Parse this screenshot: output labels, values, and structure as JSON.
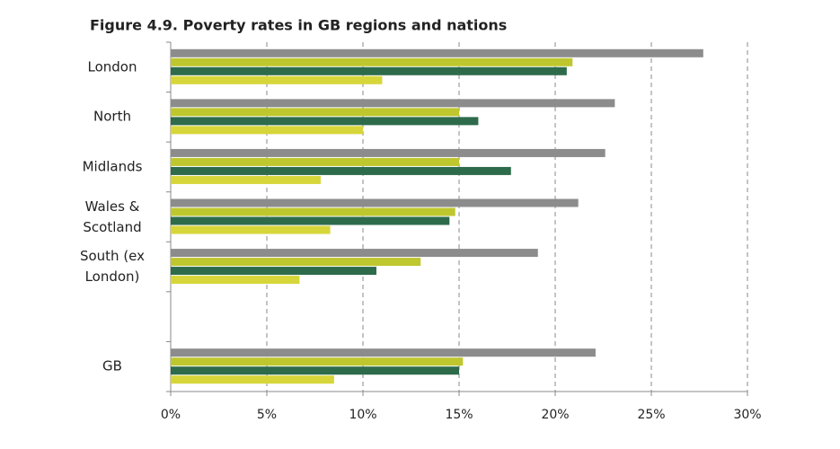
{
  "chart_data": {
    "type": "hbar",
    "title": "Figure 4.9. Poverty rates in GB regions and nations",
    "categories": [
      "London",
      "North",
      "Midlands",
      "Wales & Scotland",
      "South (ex London)",
      null,
      "GB"
    ],
    "series": [
      {
        "color": "#8c8c8c",
        "values": [
          27.7,
          23.1,
          22.6,
          21.2,
          19.1,
          null,
          22.1
        ]
      },
      {
        "color": "#bfc72e",
        "values": [
          20.9,
          15.0,
          15.0,
          14.8,
          13.0,
          null,
          15.2
        ]
      },
      {
        "color": "#2d6b4b",
        "values": [
          20.6,
          16.0,
          17.7,
          14.5,
          10.7,
          null,
          15.0
        ]
      },
      {
        "color": "#d6d63a",
        "values": [
          11.0,
          10.0,
          7.8,
          8.3,
          6.7,
          null,
          8.5
        ]
      }
    ],
    "xlim": [
      0,
      30
    ],
    "xticks": [
      {
        "value": 0,
        "label": "0%"
      },
      {
        "value": 5,
        "label": "5%"
      },
      {
        "value": 10,
        "label": "10%"
      },
      {
        "value": 15,
        "label": "15%"
      },
      {
        "value": 20,
        "label": "20%"
      },
      {
        "value": 25,
        "label": "25%"
      },
      {
        "value": 30,
        "label": "30%"
      }
    ],
    "grid": true
  }
}
